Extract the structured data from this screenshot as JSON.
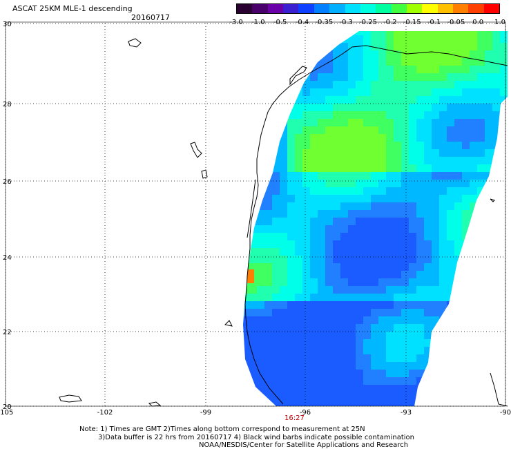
{
  "title": "ASCAT 25KM MLE-1 descending",
  "date": "20160717",
  "colorbar": {
    "labels": [
      "-3.0",
      "-1.0",
      "-0.5",
      "-0.4",
      "-0.35",
      "-0.3",
      "-0.25",
      "-0.2",
      "-0.15",
      "-0.1",
      "-0.05",
      "0.0",
      "1.0"
    ],
    "colors": [
      "#2a0030",
      "#4a006a",
      "#6a00a8",
      "#3a20d0",
      "#1040ff",
      "#0080ff",
      "#00b0ff",
      "#00e0ff",
      "#00ffe0",
      "#00ffa0",
      "#40ff40",
      "#a0ff00",
      "#ffff00",
      "#ffc000",
      "#ff8000",
      "#ff4000",
      "#ff0000"
    ]
  },
  "axes": {
    "x_ticks": [
      "-105",
      "-102",
      "-99",
      "-96",
      "-93",
      "-90"
    ],
    "y_ticks": [
      "20",
      "22",
      "24",
      "26",
      "28",
      "30"
    ]
  },
  "time_label": "16:27",
  "notes": {
    "line1": "Note: 1) Times are GMT 2)Times along bottom correspond to measurement at 25N",
    "line2": "3)Data buffer is 22 hrs from 20160717 4) Black wind barbs indicate possible contamination",
    "line3": "NOAA/NESDIS/Center for Satellite Applications and Research"
  }
}
